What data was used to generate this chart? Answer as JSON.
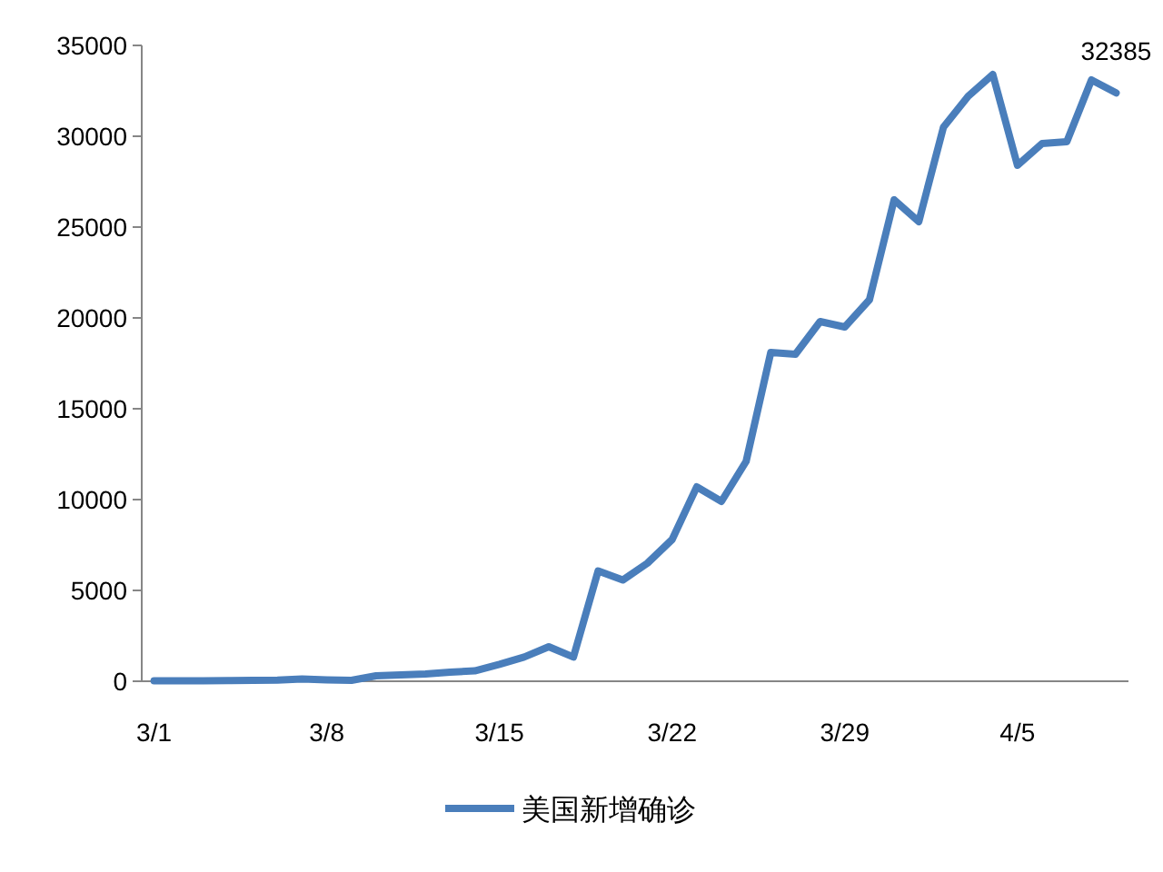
{
  "chart_data": {
    "type": "line",
    "categories": [
      "3/1",
      null,
      null,
      null,
      null,
      null,
      null,
      "3/8",
      null,
      null,
      null,
      null,
      null,
      null,
      "3/15",
      null,
      null,
      null,
      null,
      null,
      null,
      "3/22",
      null,
      null,
      null,
      null,
      null,
      null,
      "3/29",
      null,
      null,
      null,
      null,
      null,
      null,
      "4/5",
      null,
      null,
      null,
      null
    ],
    "series": [
      {
        "name": "美国新增确诊",
        "color": "#4a7ebb",
        "values": [
          20,
          20,
          30,
          40,
          50,
          60,
          120,
          80,
          50,
          300,
          350,
          400,
          500,
          570,
          930,
          1330,
          1900,
          1330,
          6070,
          5570,
          6500,
          7800,
          10700,
          9900,
          12100,
          18100,
          18000,
          19800,
          19500,
          21000,
          26500,
          25300,
          30500,
          32200,
          33400,
          28400,
          29600,
          29700,
          33100,
          32385
        ],
        "value_labels": [
          null,
          null,
          null,
          null,
          null,
          null,
          null,
          null,
          null,
          null,
          null,
          null,
          null,
          null,
          null,
          null,
          null,
          null,
          null,
          null,
          null,
          null,
          null,
          null,
          null,
          null,
          null,
          null,
          null,
          null,
          null,
          null,
          null,
          null,
          null,
          null,
          null,
          null,
          null,
          "32385"
        ]
      }
    ],
    "ylim": [
      0,
      35000
    ],
    "yticks": [
      0,
      5000,
      10000,
      15000,
      20000,
      25000,
      30000,
      35000
    ],
    "grid": false,
    "legend": "bottom",
    "marker": "none",
    "line_style": "solid"
  }
}
